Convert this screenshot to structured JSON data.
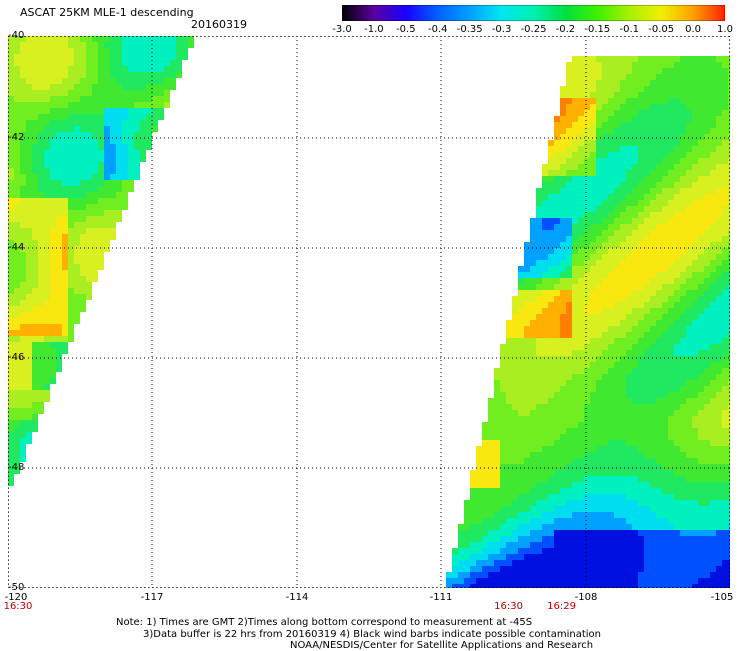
{
  "header": {
    "title": "ASCAT 25KM MLE-1 descending",
    "date": "20160319"
  },
  "colorbar": {
    "labels": [
      "-3.0",
      "-1.0",
      "-0.5",
      "-0.4",
      "-0.35",
      "-0.3",
      "-0.25",
      "-0.2",
      "-0.15",
      "-0.1",
      "-0.05",
      "0.0",
      "1.0"
    ],
    "colors": [
      "#000000",
      "#5a00a0",
      "#1a00ff",
      "#0060ff",
      "#00a0ff",
      "#00e8f0",
      "#00f0b0",
      "#00e040",
      "#40f000",
      "#a8f000",
      "#f0f000",
      "#ffa000",
      "#ff2000"
    ]
  },
  "map": {
    "lat_labels": [
      "-40",
      "-42",
      "-44",
      "-46",
      "-48",
      "-50"
    ],
    "lon_labels": [
      "-120",
      "-117",
      "-114",
      "-111",
      "-108",
      "-105"
    ],
    "time_labels": [
      {
        "text": "16:30",
        "at": "-120"
      },
      {
        "text": "16:30",
        "at": "-109.6"
      },
      {
        "text": "16:29",
        "at": "-108.5"
      }
    ]
  },
  "notes": {
    "line1": "Note: 1) Times are GMT 2)Times along bottom correspond to measurement at -45S",
    "line2": "3)Data buffer is 22 hrs from 20160319 4) Black wind barbs indicate possible contamination",
    "line3": "NOAA/NESDIS/Center for Satellite Applications and Research"
  }
}
